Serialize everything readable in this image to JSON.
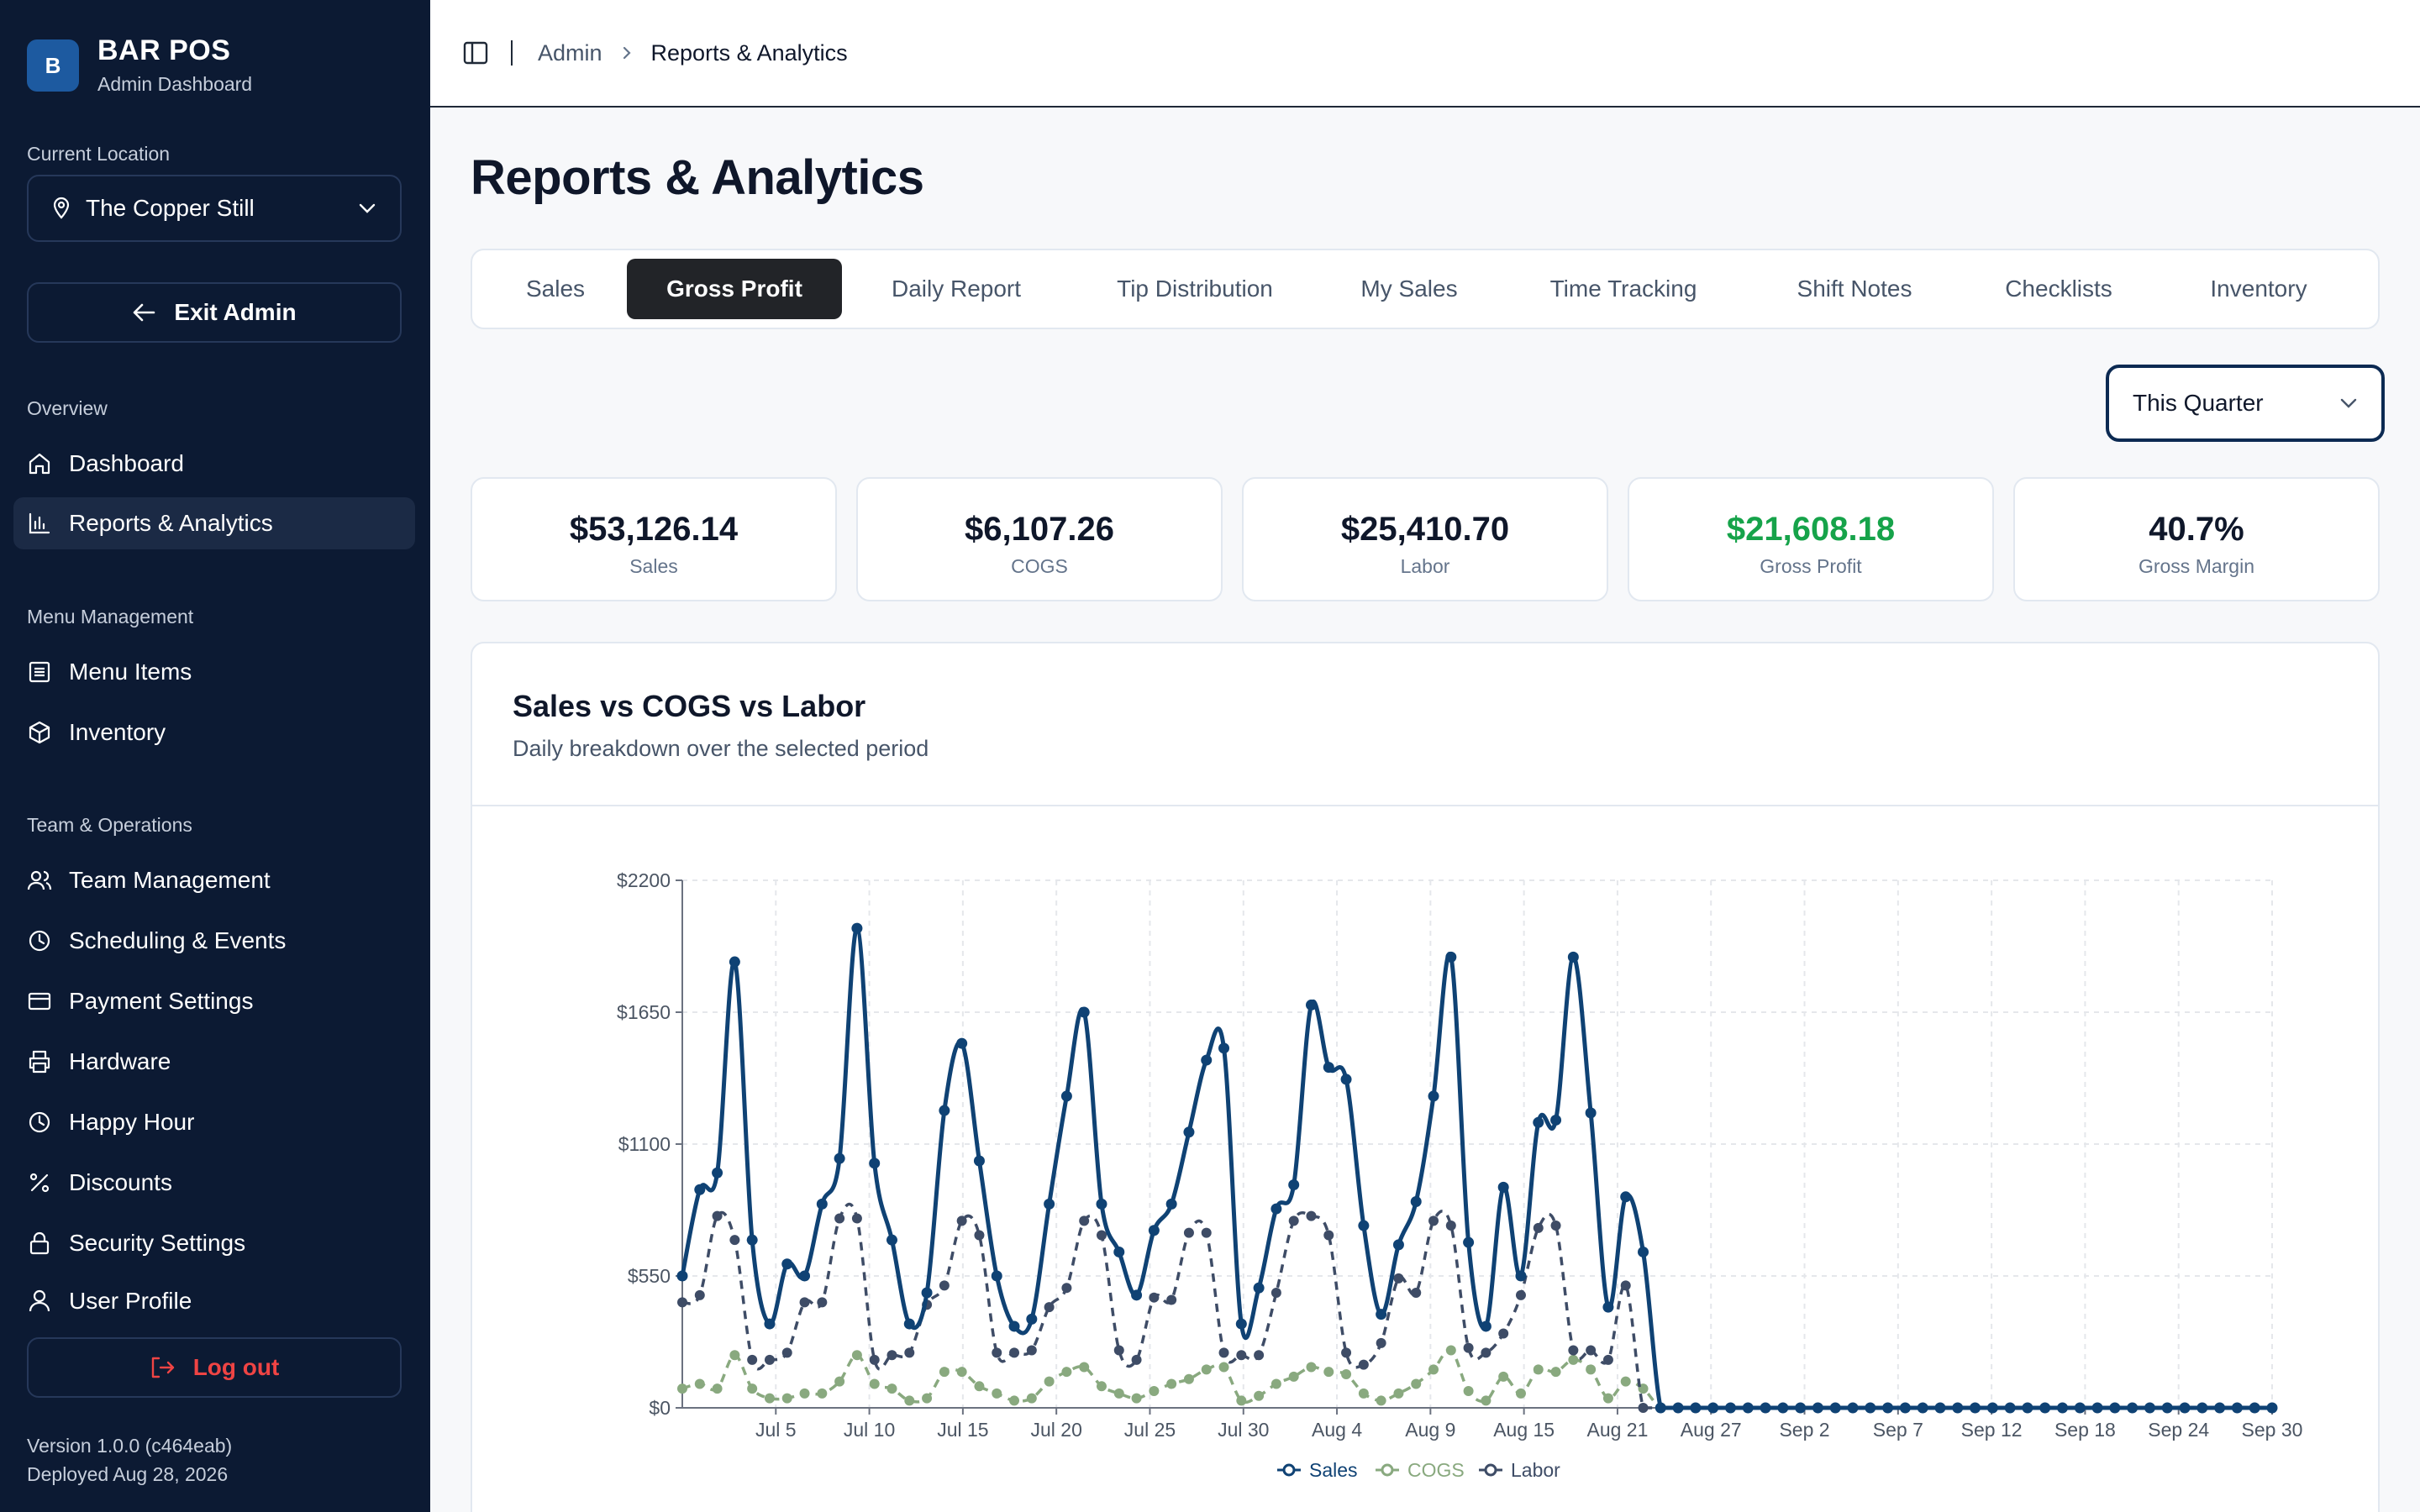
{
  "sidebar": {
    "brand": {
      "logo_letter": "B",
      "name": "BAR POS",
      "subtitle": "Admin Dashboard"
    },
    "location": {
      "label": "Current Location",
      "value": "The Copper Still"
    },
    "exit_label": "Exit Admin",
    "sections": {
      "overview": "Overview",
      "menu": "Menu Management",
      "team": "Team & Operations"
    },
    "items": {
      "dashboard": "Dashboard",
      "reports": "Reports & Analytics",
      "menu_items": "Menu Items",
      "inventory": "Inventory",
      "team_management": "Team Management",
      "scheduling": "Scheduling & Events",
      "payment": "Payment Settings",
      "hardware": "Hardware",
      "happy_hour": "Happy Hour",
      "discounts": "Discounts",
      "security": "Security Settings",
      "profile": "User Profile"
    },
    "logout_label": "Log out",
    "version": "Version 1.0.0 (c464eab)",
    "deployed": "Deployed Aug 28, 2026"
  },
  "header": {
    "breadcrumb": [
      "Admin",
      "Reports & Analytics"
    ]
  },
  "page": {
    "title": "Reports & Analytics",
    "tabs": [
      "Sales",
      "Gross Profit",
      "Daily Report",
      "Tip Distribution",
      "My Sales",
      "Time Tracking",
      "Shift Notes",
      "Checklists",
      "Inventory"
    ],
    "active_tab": "Gross Profit",
    "period": "This Quarter"
  },
  "kpis": [
    {
      "value": "$53,126.14",
      "label": "Sales"
    },
    {
      "value": "$6,107.26",
      "label": "COGS"
    },
    {
      "value": "$25,410.70",
      "label": "Labor"
    },
    {
      "value": "$21,608.18",
      "label": "Gross Profit"
    },
    {
      "value": "40.7%",
      "label": "Gross Margin"
    }
  ],
  "colors": {
    "sales": "#0f4274",
    "cogs": "#89a97f",
    "labor": "#3e4c66",
    "gross_profit": "#16a34a",
    "sidebar_bg": "#0c1a33"
  },
  "chart_card": {
    "title": "Sales vs COGS vs Labor",
    "subtitle": "Daily breakdown over the selected period"
  },
  "chart_data": {
    "type": "line",
    "title": "Sales vs COGS vs Labor",
    "subtitle": "Daily breakdown over the selected period",
    "x_start": "Jul 1",
    "x_end": "Sep 30",
    "x_tick_labels": [
      "Jul 5",
      "Jul 10",
      "Jul 15",
      "Jul 20",
      "Jul 25",
      "Jul 30",
      "Aug 4",
      "Aug 9",
      "Aug 15",
      "Aug 21",
      "Aug 27",
      "Sep 2",
      "Sep 7",
      "Sep 12",
      "Sep 18",
      "Sep 24",
      "Sep 30"
    ],
    "y_ticks": [
      0,
      550,
      1100,
      1650,
      2200
    ],
    "y_tick_labels": [
      "$0",
      "$550",
      "$1100",
      "$1650",
      "$2200"
    ],
    "ylim": [
      0,
      2200
    ],
    "grid": true,
    "legend": "bottom-center",
    "series": [
      {
        "name": "Sales",
        "style": "solid",
        "values": [
          550,
          910,
          980,
          1860,
          700,
          350,
          600,
          550,
          850,
          1040,
          2000,
          1020,
          700,
          350,
          480,
          1240,
          1520,
          1030,
          550,
          340,
          370,
          850,
          1300,
          1650,
          850,
          650,
          470,
          740,
          850,
          1150,
          1450,
          1500,
          350,
          500,
          830,
          930,
          1680,
          1420,
          1370,
          760,
          390,
          680,
          860,
          1300,
          1880,
          690,
          340,
          920,
          550,
          1190,
          1200,
          1880,
          1230,
          420,
          880,
          650,
          0,
          0,
          0,
          0,
          0,
          0,
          0,
          0,
          0,
          0,
          0,
          0,
          0,
          0,
          0,
          0,
          0,
          0,
          0,
          0,
          0,
          0,
          0,
          0,
          0,
          0,
          0,
          0,
          0,
          0,
          0,
          0,
          0,
          0,
          0,
          0
        ]
      },
      {
        "name": "COGS",
        "style": "dashed",
        "values": [
          80,
          100,
          80,
          220,
          80,
          40,
          40,
          60,
          60,
          110,
          220,
          100,
          80,
          30,
          40,
          150,
          150,
          90,
          60,
          30,
          40,
          110,
          150,
          170,
          90,
          60,
          40,
          70,
          100,
          120,
          160,
          170,
          30,
          50,
          100,
          130,
          170,
          150,
          140,
          60,
          30,
          60,
          100,
          160,
          240,
          70,
          30,
          130,
          60,
          160,
          150,
          200,
          160,
          40,
          110,
          80,
          0,
          0,
          0,
          0,
          0,
          0,
          0,
          0,
          0,
          0,
          0,
          0,
          0,
          0,
          0,
          0,
          0,
          0,
          0,
          0,
          0,
          0,
          0,
          0,
          0,
          0,
          0,
          0,
          0,
          0,
          0,
          0,
          0,
          0,
          0,
          0
        ]
      },
      {
        "name": "Labor",
        "style": "dashed",
        "values": [
          440,
          470,
          800,
          700,
          200,
          200,
          230,
          440,
          440,
          790,
          790,
          200,
          220,
          230,
          430,
          510,
          780,
          720,
          230,
          230,
          240,
          420,
          500,
          780,
          720,
          240,
          200,
          460,
          450,
          730,
          730,
          230,
          220,
          220,
          480,
          780,
          800,
          720,
          230,
          180,
          270,
          540,
          480,
          780,
          760,
          250,
          230,
          310,
          470,
          750,
          760,
          240,
          240,
          200,
          510,
          0,
          0,
          0,
          0,
          0,
          0,
          0,
          0,
          0,
          0,
          0,
          0,
          0,
          0,
          0,
          0,
          0,
          0,
          0,
          0,
          0,
          0,
          0,
          0,
          0,
          0,
          0,
          0,
          0,
          0,
          0,
          0,
          0,
          0,
          0,
          0,
          0
        ]
      }
    ]
  }
}
